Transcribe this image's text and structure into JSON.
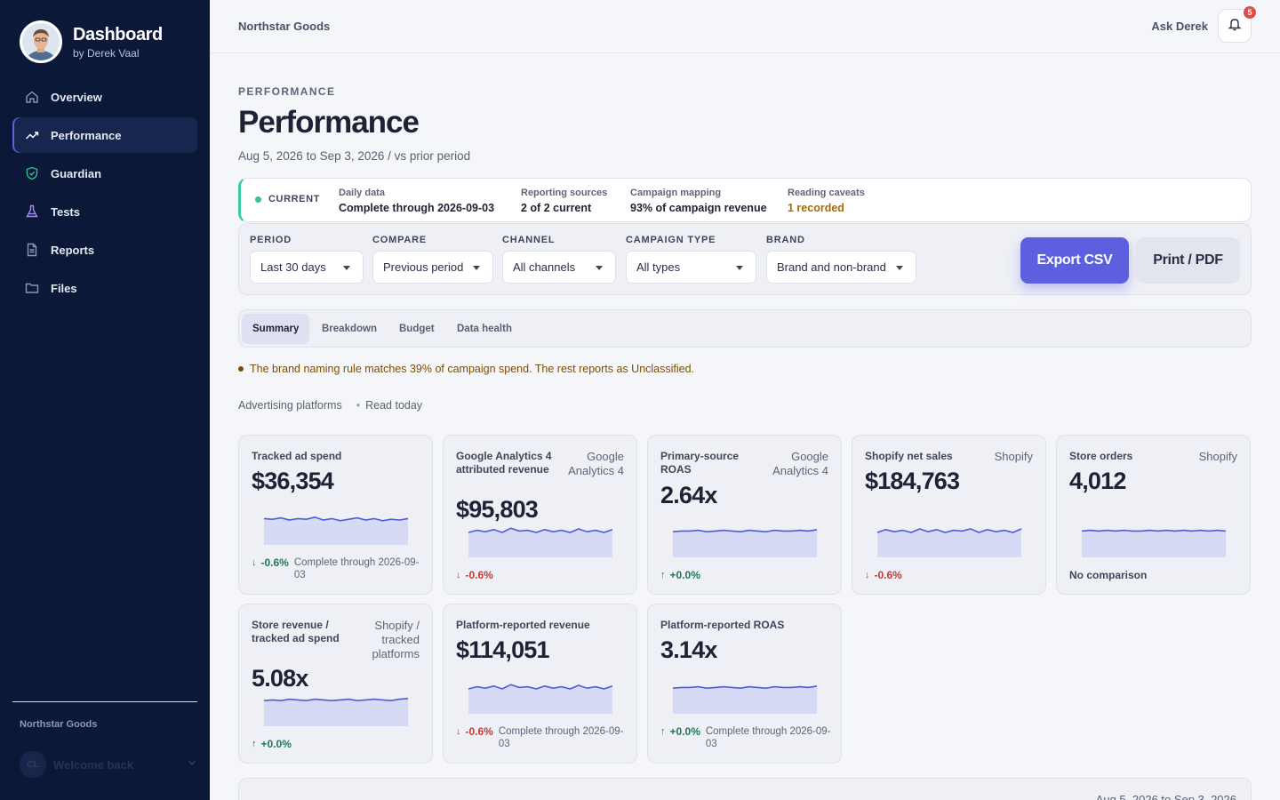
{
  "sidebar": {
    "title": "Dashboard",
    "subtitle": "by Derek Vaal",
    "items": [
      {
        "label": "Overview",
        "icon": "home-icon"
      },
      {
        "label": "Performance",
        "icon": "trend-icon",
        "active": true
      },
      {
        "label": "Guardian",
        "icon": "shield-icon"
      },
      {
        "label": "Tests",
        "icon": "flask-icon"
      },
      {
        "label": "Reports",
        "icon": "document-icon"
      },
      {
        "label": "Files",
        "icon": "folder-icon"
      }
    ],
    "org": "Northstar Goods",
    "user_initials": "CL",
    "user_text": "Welcome back"
  },
  "topbar": {
    "org": "Northstar Goods",
    "ask": "Ask Derek",
    "notifications": "5"
  },
  "page": {
    "eyebrow": "PERFORMANCE",
    "title": "Performance",
    "date_range": "Aug 5, 2026 to Sep 3, 2026 / vs prior period"
  },
  "status": {
    "state": "CURRENT",
    "daily_label": "Daily data",
    "daily_value": "Complete through 2026-09-03",
    "sources_label": "Reporting sources",
    "sources_value": "2 of 2 current",
    "mapping_label": "Campaign mapping",
    "mapping_value": "93% of campaign revenue",
    "caveats_label": "Reading caveats",
    "caveats_value": "1 recorded"
  },
  "filters": {
    "period_label": "PERIOD",
    "period_value": "Last 30 days",
    "compare_label": "COMPARE",
    "compare_value": "Previous period",
    "channel_label": "CHANNEL",
    "channel_value": "All channels",
    "type_label": "CAMPAIGN TYPE",
    "type_value": "All types",
    "brand_label": "BRAND",
    "brand_value": "Brand and non-brand",
    "export": "Export CSV",
    "print": "Print / PDF"
  },
  "tabs": [
    "Summary",
    "Breakdown",
    "Budget",
    "Data health"
  ],
  "notice": "The brand naming rule matches 39% of campaign spend. The rest reports as Unclassified.",
  "section": {
    "title": "Advertising platforms",
    "read": "Read today"
  },
  "metrics": [
    {
      "label": "Tracked ad spend",
      "source": "",
      "value": "$36,354",
      "delta": "-0.6%",
      "dir": "down-good",
      "note": "Complete through 2026-09-03",
      "spark": [
        52,
        51,
        53,
        50,
        52,
        51,
        54,
        50,
        52,
        49,
        51,
        53,
        50,
        52,
        49,
        51,
        50,
        52
      ]
    },
    {
      "label": "Google Analytics 4 attributed revenue",
      "source": "Google Analytics 4",
      "value": "$95,803",
      "delta": "-0.6%",
      "dir": "down-bad",
      "note": "",
      "spark": [
        50,
        53,
        51,
        54,
        50,
        56,
        52,
        53,
        50,
        54,
        51,
        53,
        50,
        55,
        51,
        53,
        50,
        54
      ]
    },
    {
      "label": "Primary-source ROAS",
      "source": "Google Analytics 4",
      "value": "2.64x",
      "delta": "+0.0%",
      "dir": "up-good",
      "note": "",
      "spark": [
        51,
        52,
        52,
        53,
        51,
        52,
        53,
        52,
        51,
        53,
        52,
        51,
        53,
        52,
        52,
        53,
        52,
        54
      ]
    },
    {
      "label": "Shopify net sales",
      "source": "Shopify",
      "value": "$184,763",
      "delta": "-0.6%",
      "dir": "down-bad",
      "note": "",
      "spark": [
        50,
        54,
        51,
        53,
        50,
        55,
        51,
        54,
        50,
        53,
        52,
        55,
        50,
        54,
        51,
        53,
        50,
        55
      ]
    },
    {
      "label": "Store orders",
      "source": "Shopify",
      "value": "4,012",
      "delta": "No comparison",
      "dir": "none",
      "note": "",
      "spark": [
        52,
        53,
        52,
        53,
        52,
        53,
        52,
        52,
        53,
        52,
        53,
        52,
        53,
        52,
        53,
        52,
        53,
        52
      ]
    },
    {
      "label": "Store revenue / tracked ad spend",
      "source": "Shopify / tracked platforms",
      "value": "5.08x",
      "delta": "+0.0%",
      "dir": "up-good",
      "note": "",
      "spark": [
        51,
        52,
        51,
        53,
        52,
        51,
        53,
        52,
        51,
        52,
        53,
        51,
        52,
        53,
        52,
        51,
        53,
        54
      ]
    },
    {
      "label": "Platform-reported revenue",
      "source": "",
      "value": "$114,051",
      "delta": "-0.6%",
      "dir": "down-bad",
      "note": "Complete through 2026-09-03",
      "spark": [
        50,
        53,
        51,
        54,
        50,
        56,
        52,
        53,
        50,
        54,
        51,
        53,
        50,
        55,
        51,
        53,
        50,
        54
      ]
    },
    {
      "label": "Platform-reported ROAS",
      "source": "",
      "value": "3.14x",
      "delta": "+0.0%",
      "dir": "up-good",
      "note": "Complete through 2026-09-03",
      "spark": [
        51,
        52,
        52,
        53,
        51,
        52,
        53,
        52,
        51,
        53,
        52,
        51,
        53,
        52,
        52,
        53,
        52,
        54
      ]
    }
  ],
  "bottom": {
    "date": "Aug 5, 2026 to Sep 3, 2026"
  },
  "colors": {
    "sidebar": "#0c1838",
    "accent": "#5b5fe0",
    "status_green": "#33c48f",
    "positive": "#1d7a53",
    "negative": "#c33a3a",
    "spark_line": "#4f5bd5",
    "spark_fill": "#d7daf4"
  }
}
